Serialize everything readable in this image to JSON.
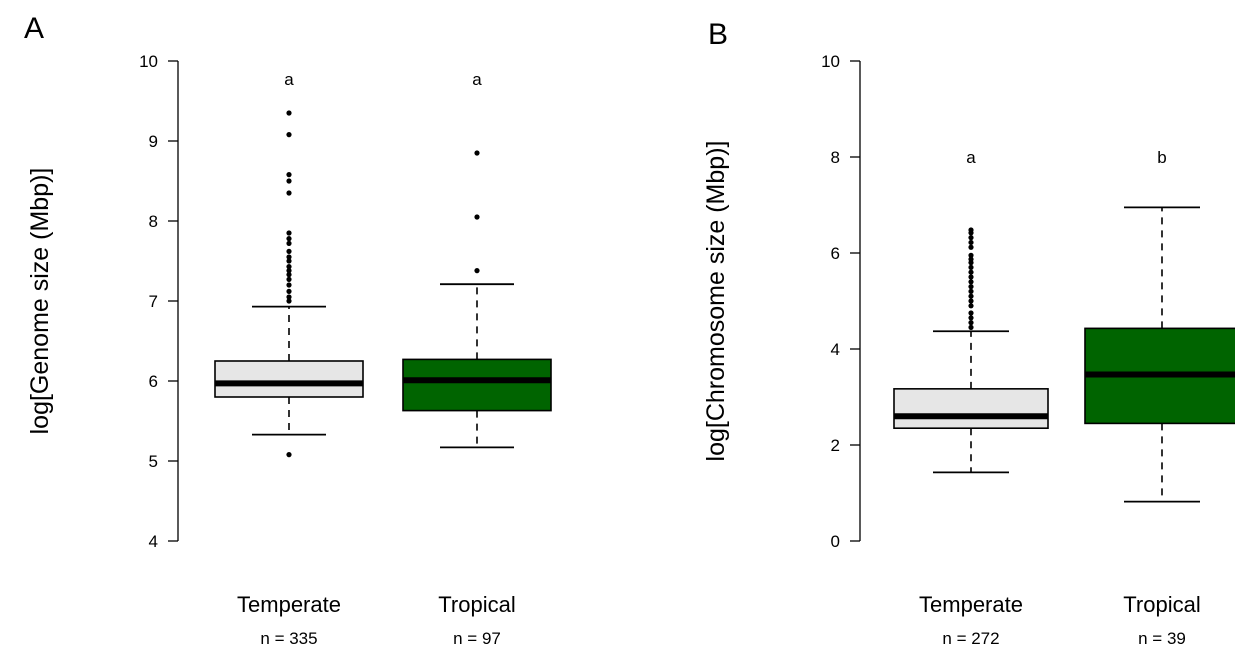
{
  "chart_data": [
    {
      "type": "boxplot",
      "panel_label": "A",
      "ylabel": "log[Genome size (Mbp)]",
      "ylim": [
        4,
        10
      ],
      "yticks": [
        4,
        5,
        6,
        7,
        8,
        9,
        10
      ],
      "grid": false,
      "categories": [
        "Temperate",
        "Tropical"
      ],
      "n_labels": [
        "n = 335",
        "n = 97"
      ],
      "letters": [
        "a",
        "a"
      ],
      "boxes": [
        {
          "category": "Temperate",
          "color": "#e6e6e6",
          "whisker_low": 5.33,
          "q1": 5.8,
          "median": 5.97,
          "q3": 6.25,
          "whisker_high": 6.93,
          "outliers": [
            5.08,
            7.0,
            7.05,
            7.12,
            7.2,
            7.27,
            7.33,
            7.38,
            7.43,
            7.5,
            7.55,
            7.62,
            7.72,
            7.78,
            7.85,
            8.35,
            8.5,
            8.58,
            9.08,
            9.35
          ]
        },
        {
          "category": "Tropical",
          "color": "#006400",
          "whisker_low": 5.17,
          "q1": 5.63,
          "median": 6.01,
          "q3": 6.27,
          "whisker_high": 7.21,
          "outliers": [
            7.38,
            8.05,
            8.85
          ]
        }
      ]
    },
    {
      "type": "boxplot",
      "panel_label": "B",
      "ylabel": "log[Chromosome size (Mbp)]",
      "ylim": [
        0,
        10
      ],
      "yticks": [
        0,
        2,
        4,
        6,
        8,
        10
      ],
      "grid": false,
      "categories": [
        "Temperate",
        "Tropical"
      ],
      "n_labels": [
        "n = 272",
        "n = 39"
      ],
      "letters": [
        "a",
        "b"
      ],
      "boxes": [
        {
          "category": "Temperate",
          "color": "#e6e6e6",
          "whisker_low": 1.43,
          "q1": 2.35,
          "median": 2.6,
          "q3": 3.17,
          "whisker_high": 4.37,
          "outliers": [
            4.45,
            4.55,
            4.65,
            4.75,
            4.9,
            5.0,
            5.1,
            5.2,
            5.3,
            5.4,
            5.5,
            5.6,
            5.7,
            5.8,
            5.87,
            5.95,
            6.12,
            6.22,
            6.32,
            6.42,
            6.48
          ]
        },
        {
          "category": "Tropical",
          "color": "#006400",
          "whisker_low": 0.82,
          "q1": 2.45,
          "median": 3.47,
          "q3": 4.43,
          "whisker_high": 6.95,
          "outliers": []
        }
      ]
    }
  ]
}
